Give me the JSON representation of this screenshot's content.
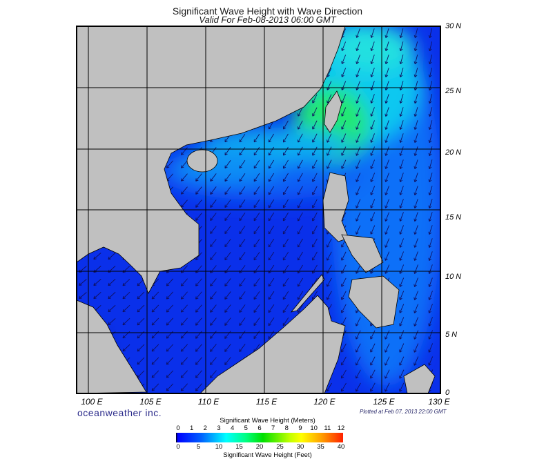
{
  "title": "Significant Wave Height with Wave Direction",
  "subtitle": "Valid For Feb-08-2013 06:00 GMT",
  "lat_labels": [
    "30 N",
    "25 N",
    "20 N",
    "15 N",
    "10 N",
    "5 N",
    "0"
  ],
  "lon_labels": [
    "100 E",
    "105 E",
    "110 E",
    "115 E",
    "120 E",
    "125 E",
    "130 E"
  ],
  "brand": "oceanweather inc.",
  "plotted": "Plotted at Feb 07, 2013 22:00 GMT",
  "colorbar": {
    "title": "Significant Wave Height (Meters)",
    "meters": [
      "0",
      "1",
      "2",
      "3",
      "4",
      "5",
      "6",
      "7",
      "8",
      "9",
      "10",
      "11",
      "12"
    ],
    "feet": [
      "0",
      "5",
      "10",
      "15",
      "20",
      "25",
      "30",
      "35",
      "40"
    ],
    "footer": "Significant Wave Height (Feet)"
  },
  "colors": {
    "land": "#c0c0c0",
    "ocean_low": "#0a28e6",
    "ocean_mid": "#0a6cf5",
    "peak": "#20e060"
  }
}
